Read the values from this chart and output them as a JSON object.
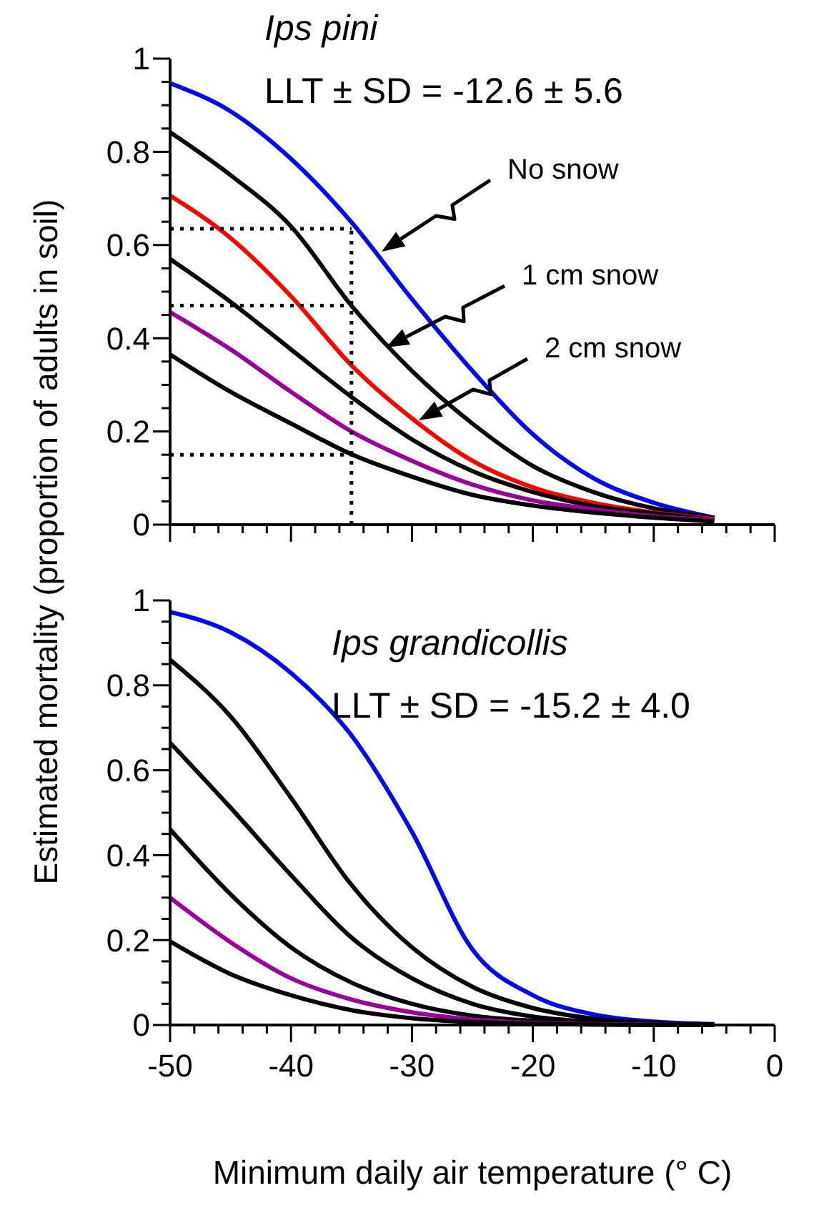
{
  "chart_data": [
    {
      "type": "line",
      "title": "Ips pini",
      "subtitle": "LLT ± SD = -12.6 ± 5.6",
      "ylabel": "Estimated mortality (proportion of adults in soil)",
      "xlim": [
        -50,
        0
      ],
      "ylim": [
        0,
        1
      ],
      "tick_labels": "y",
      "xticks": [
        -50,
        {
          "value": -48,
          "label": null
        },
        {
          "value": -46,
          "label": null
        },
        {
          "value": -44,
          "label": null
        },
        {
          "value": -42,
          "label": null
        },
        -40,
        {
          "value": -38,
          "label": null
        },
        {
          "value": -36,
          "label": null
        },
        {
          "value": -34,
          "label": null
        },
        {
          "value": -32,
          "label": null
        },
        -30,
        {
          "value": -28,
          "label": null
        },
        {
          "value": -26,
          "label": null
        },
        {
          "value": -24,
          "label": null
        },
        {
          "value": -22,
          "label": null
        },
        -20,
        {
          "value": -18,
          "label": null
        },
        {
          "value": -16,
          "label": null
        },
        {
          "value": -14,
          "label": null
        },
        {
          "value": -12,
          "label": null
        },
        -10,
        {
          "value": -8,
          "label": null
        },
        {
          "value": -6,
          "label": null
        },
        {
          "value": -4,
          "label": null
        },
        {
          "value": -2,
          "label": null
        },
        0
      ],
      "yticks": [
        0,
        {
          "value": 0.05,
          "label": null
        },
        {
          "value": 0.1,
          "label": null
        },
        {
          "value": 0.15,
          "label": null
        },
        0.2,
        {
          "value": 0.25,
          "label": null
        },
        {
          "value": 0.3,
          "label": null
        },
        {
          "value": 0.35,
          "label": null
        },
        0.4,
        {
          "value": 0.45,
          "label": null
        },
        {
          "value": 0.5,
          "label": null
        },
        {
          "value": 0.55,
          "label": null
        },
        0.6,
        {
          "value": 0.65,
          "label": null
        },
        {
          "value": 0.7,
          "label": null
        },
        {
          "value": 0.75,
          "label": null
        },
        0.8,
        {
          "value": 0.85,
          "label": null
        },
        {
          "value": 0.9,
          "label": null
        },
        {
          "value": 0.95,
          "label": null
        },
        1
      ],
      "x": [
        -50,
        -45,
        -40,
        -35,
        -30,
        -25,
        -20,
        -15,
        -10,
        -5
      ],
      "series": [
        {
          "color": "#0000ff",
          "values": [
            0.947,
            0.887,
            0.785,
            0.649,
            0.484,
            0.33,
            0.194,
            0.1,
            0.047,
            0.015
          ]
        },
        {
          "color": "#000000",
          "values": [
            0.842,
            0.75,
            0.64,
            0.47,
            0.33,
            0.217,
            0.126,
            0.07,
            0.035,
            0.015
          ]
        },
        {
          "color": "#ff0000",
          "values": [
            0.706,
            0.615,
            0.49,
            0.342,
            0.228,
            0.137,
            0.08,
            0.047,
            0.026,
            0.012
          ]
        },
        {
          "color": "#000000",
          "values": [
            0.57,
            0.478,
            0.376,
            0.274,
            0.183,
            0.115,
            0.07,
            0.04,
            0.024,
            0.01
          ]
        },
        {
          "color": "#990099",
          "values": [
            0.456,
            0.376,
            0.285,
            0.2,
            0.137,
            0.086,
            0.052,
            0.033,
            0.018,
            0.01
          ]
        },
        {
          "color": "#000000",
          "values": [
            0.365,
            0.285,
            0.217,
            0.151,
            0.103,
            0.064,
            0.041,
            0.026,
            0.015,
            0.007
          ]
        },
        {
          "color": "#000000",
          "line_style": "dotted",
          "values": [
            0.635,
            0.635,
            0.635,
            0.635,
            null,
            null,
            null,
            null,
            null,
            null
          ]
        },
        {
          "color": "#000000",
          "line_style": "dotted",
          "values": [
            0.47,
            0.47,
            0.47,
            0.47,
            null,
            null,
            null,
            null,
            null,
            null
          ]
        },
        {
          "color": "#000000",
          "line_style": "dotted",
          "values": [
            0.15,
            0.15,
            0.15,
            0.15,
            null,
            null,
            null,
            null,
            null,
            null
          ]
        }
      ],
      "ref_lines": [
        {
          "axis": "x",
          "value": -35,
          "color": "#000000",
          "line_style": "dotted"
        }
      ],
      "annotations": [
        "No snow",
        "1 cm snow",
        "2 cm snow"
      ]
    },
    {
      "type": "line",
      "title": "Ips grandicollis",
      "subtitle": "LLT ± SD = -15.2 ± 4.0",
      "xlabel": "Minimum daily air temperature (° C)",
      "xlim": [
        -50,
        0
      ],
      "ylim": [
        0,
        1
      ],
      "xticks": [
        -50,
        {
          "value": -48,
          "label": null
        },
        {
          "value": -46,
          "label": null
        },
        {
          "value": -44,
          "label": null
        },
        {
          "value": -42,
          "label": null
        },
        -40,
        {
          "value": -38,
          "label": null
        },
        {
          "value": -36,
          "label": null
        },
        {
          "value": -34,
          "label": null
        },
        {
          "value": -32,
          "label": null
        },
        -30,
        {
          "value": -28,
          "label": null
        },
        {
          "value": -26,
          "label": null
        },
        {
          "value": -24,
          "label": null
        },
        {
          "value": -22,
          "label": null
        },
        -20,
        {
          "value": -18,
          "label": null
        },
        {
          "value": -16,
          "label": null
        },
        {
          "value": -14,
          "label": null
        },
        {
          "value": -12,
          "label": null
        },
        -10,
        {
          "value": -8,
          "label": null
        },
        {
          "value": -6,
          "label": null
        },
        {
          "value": -4,
          "label": null
        },
        {
          "value": -2,
          "label": null
        },
        0
      ],
      "yticks": [
        0,
        {
          "value": 0.05,
          "label": null
        },
        {
          "value": 0.1,
          "label": null
        },
        {
          "value": 0.15,
          "label": null
        },
        0.2,
        {
          "value": 0.25,
          "label": null
        },
        {
          "value": 0.3,
          "label": null
        },
        {
          "value": 0.35,
          "label": null
        },
        0.4,
        {
          "value": 0.45,
          "label": null
        },
        {
          "value": 0.5,
          "label": null
        },
        {
          "value": 0.55,
          "label": null
        },
        0.6,
        {
          "value": 0.65,
          "label": null
        },
        {
          "value": 0.7,
          "label": null
        },
        {
          "value": 0.75,
          "label": null
        },
        0.8,
        {
          "value": 0.85,
          "label": null
        },
        {
          "value": 0.9,
          "label": null
        },
        {
          "value": 0.95,
          "label": null
        },
        1
      ],
      "x": [
        -50,
        -45,
        -40,
        -35,
        -30,
        -25,
        -20,
        -15,
        -10,
        -5
      ],
      "series": [
        {
          "color": "#0000ff",
          "values": [
            0.973,
            0.925,
            0.829,
            0.682,
            0.455,
            0.178,
            0.07,
            0.025,
            0.008,
            0.002
          ]
        },
        {
          "color": "#000000",
          "values": [
            0.86,
            0.727,
            0.535,
            0.33,
            0.183,
            0.09,
            0.04,
            0.015,
            0.005,
            0.001
          ]
        },
        {
          "color": "#000000",
          "values": [
            0.665,
            0.512,
            0.353,
            0.206,
            0.11,
            0.05,
            0.02,
            0.008,
            0.003,
            0.001
          ]
        },
        {
          "color": "#000000",
          "values": [
            0.461,
            0.308,
            0.183,
            0.1,
            0.05,
            0.022,
            0.01,
            0.004,
            0.001,
            0
          ]
        },
        {
          "color": "#990099",
          "values": [
            0.3,
            0.195,
            0.11,
            0.06,
            0.03,
            0.013,
            0.005,
            0.002,
            0.001,
            0
          ]
        },
        {
          "color": "#000000",
          "values": [
            0.197,
            0.12,
            0.07,
            0.035,
            0.016,
            0.007,
            0.003,
            0.001,
            0,
            0
          ]
        }
      ]
    }
  ]
}
